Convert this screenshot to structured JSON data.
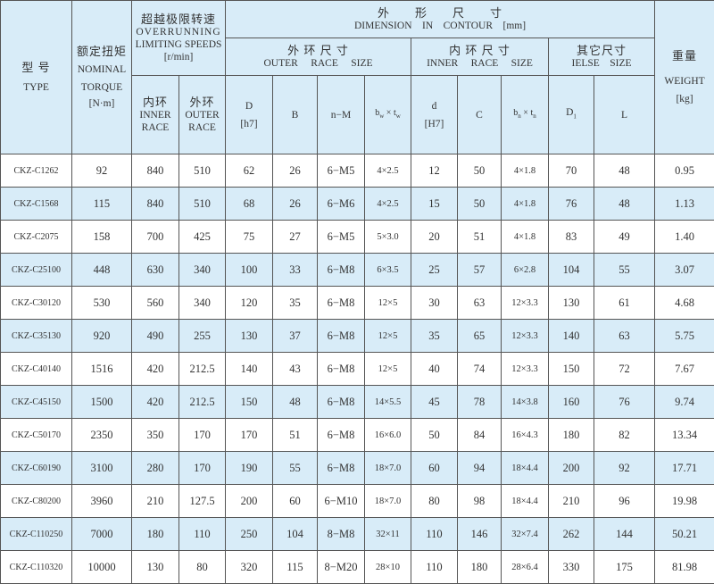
{
  "header": {
    "type": {
      "cn": "型 号",
      "en": "TYPE"
    },
    "torque": {
      "cn": "额定扭矩",
      "en1": "NOMINAL",
      "en2": "TORQUE",
      "unit": "[N·m]"
    },
    "speeds": {
      "cn": "超越极限转速",
      "en1": "OVERRUNNING",
      "en2": "LIMITING SPEEDS",
      "unit": "[r/min]"
    },
    "speed_inner": {
      "cn": "内环",
      "en1": "INNER",
      "en2": "RACE"
    },
    "speed_outer": {
      "cn": "外环",
      "en1": "OUTER",
      "en2": "RACE"
    },
    "dimension": {
      "cn": "外　　形　　尺　　寸",
      "en": "DIMENSION　IN　CONTOUR　[mm]"
    },
    "outer_size": {
      "cn": "外 环 尺 寸",
      "en": "OUTER　 RACE　 SIZE"
    },
    "inner_size": {
      "cn": "内 环 尺 寸",
      "en": "INNER　 RACE　 SIZE"
    },
    "else_size": {
      "cn": "其它尺寸",
      "en": "IELSE　SIZE"
    },
    "weight": {
      "cn": "重量",
      "en": "WEIGHT",
      "unit": "[kg]"
    },
    "cols": {
      "D": "D",
      "D_tol": "[h7]",
      "B": "B",
      "nM": "n−M",
      "bw": "b",
      "bw_sub": "w",
      "tw": "t",
      "tw_sub": "w",
      "d": "d",
      "d_tol": "[H7]",
      "C": "C",
      "bn": "b",
      "bn_sub": "n",
      "tn": "t",
      "tn_sub": "n",
      "D1": "D",
      "D1_sub": "1",
      "L": "L"
    }
  },
  "rows": [
    [
      "CKZ-C1262",
      "92",
      "840",
      "510",
      "62",
      "26",
      "6−M5",
      "4×2.5",
      "12",
      "50",
      "4×1.8",
      "70",
      "48",
      "0.95"
    ],
    [
      "CKZ-C1568",
      "115",
      "840",
      "510",
      "68",
      "26",
      "6−M6",
      "4×2.5",
      "15",
      "50",
      "4×1.8",
      "76",
      "48",
      "1.13"
    ],
    [
      "CKZ-C2075",
      "158",
      "700",
      "425",
      "75",
      "27",
      "6−M5",
      "5×3.0",
      "20",
      "51",
      "4×1.8",
      "83",
      "49",
      "1.40"
    ],
    [
      "CKZ-C25100",
      "448",
      "630",
      "340",
      "100",
      "33",
      "6−M8",
      "6×3.5",
      "25",
      "57",
      "6×2.8",
      "104",
      "55",
      "3.07"
    ],
    [
      "CKZ-C30120",
      "530",
      "560",
      "340",
      "120",
      "35",
      "6−M8",
      "12×5",
      "30",
      "63",
      "12×3.3",
      "130",
      "61",
      "4.68"
    ],
    [
      "CKZ-C35130",
      "920",
      "490",
      "255",
      "130",
      "37",
      "6−M8",
      "12×5",
      "35",
      "65",
      "12×3.3",
      "140",
      "63",
      "5.75"
    ],
    [
      "CKZ-C40140",
      "1516",
      "420",
      "212.5",
      "140",
      "43",
      "6−M8",
      "12×5",
      "40",
      "74",
      "12×3.3",
      "150",
      "72",
      "7.67"
    ],
    [
      "CKZ-C45150",
      "1500",
      "420",
      "212.5",
      "150",
      "48",
      "6−M8",
      "14×5.5",
      "45",
      "78",
      "14×3.8",
      "160",
      "76",
      "9.74"
    ],
    [
      "CKZ-C50170",
      "2350",
      "350",
      "170",
      "170",
      "51",
      "6−M8",
      "16×6.0",
      "50",
      "84",
      "16×4.3",
      "180",
      "82",
      "13.34"
    ],
    [
      "CKZ-C60190",
      "3100",
      "280",
      "170",
      "190",
      "55",
      "6−M8",
      "18×7.0",
      "60",
      "94",
      "18×4.4",
      "200",
      "92",
      "17.71"
    ],
    [
      "CKZ-C80200",
      "3960",
      "210",
      "127.5",
      "200",
      "60",
      "6−M10",
      "18×7.0",
      "80",
      "98",
      "18×4.4",
      "210",
      "96",
      "19.98"
    ],
    [
      "CKZ-C110250",
      "7000",
      "180",
      "110",
      "250",
      "104",
      "8−M8",
      "32×11",
      "110",
      "146",
      "32×7.4",
      "262",
      "144",
      "50.21"
    ],
    [
      "CKZ-C110320",
      "10000",
      "130",
      "80",
      "320",
      "115",
      "8−M20",
      "28×10",
      "110",
      "180",
      "28×6.4",
      "330",
      "175",
      "81.98"
    ]
  ],
  "colors": {
    "header_bg": "#d8ecf8",
    "stripe_bg": "#d8ecf8",
    "border": "#555555"
  }
}
